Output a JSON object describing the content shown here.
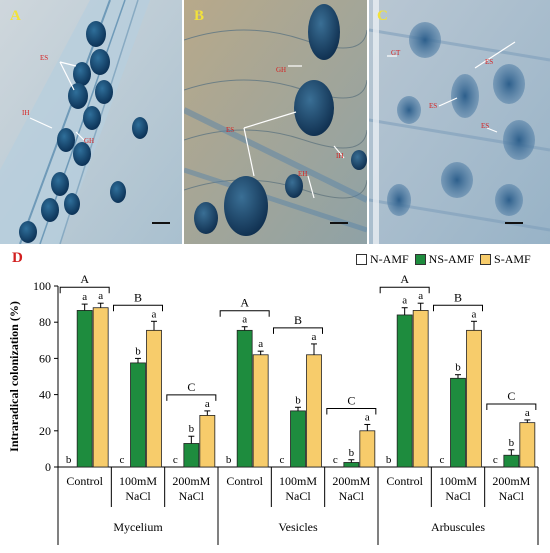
{
  "panels": [
    {
      "letter": "A",
      "labels": [
        "ES",
        "IH",
        "GH"
      ]
    },
    {
      "letter": "B",
      "labels": [
        "GH",
        "ES",
        "IH",
        "EH"
      ]
    },
    {
      "letter": "C",
      "labels": [
        "GT",
        "ES",
        "ES",
        "ES"
      ]
    }
  ],
  "chart_data": {
    "type": "bar",
    "panel_label": "D",
    "ylabel": "Intraradical colonization (%)",
    "ylim": [
      0,
      100
    ],
    "yticks": [
      0,
      20,
      40,
      60,
      80,
      100
    ],
    "groups": [
      {
        "name": "Mycelium",
        "categories": [
          "Control",
          "100mM NaCl",
          "200mM NaCl"
        ],
        "letters": [
          "A",
          "B",
          "C"
        ]
      },
      {
        "name": "Vesicles",
        "categories": [
          "Control",
          "100mM NaCl",
          "200mM NaCl"
        ],
        "letters": [
          "A",
          "B",
          "C"
        ]
      },
      {
        "name": "Arbuscules",
        "categories": [
          "Control",
          "100mM NaCl",
          "200mM NaCl"
        ],
        "letters": [
          "A",
          "B",
          "C"
        ]
      }
    ],
    "series": [
      {
        "name": "N-AMF",
        "color": "#ffffff",
        "values": [
          0,
          0,
          0,
          0,
          0,
          0,
          0,
          0,
          0
        ],
        "errors": [
          0,
          0,
          0,
          0,
          0,
          0,
          0,
          0,
          0
        ],
        "sig": [
          "b",
          "c",
          "c",
          "b",
          "c",
          "c",
          "b",
          "c",
          "c"
        ]
      },
      {
        "name": "NS-AMF",
        "color": "#1e8c3e",
        "values": [
          86.5,
          57.5,
          13,
          75.5,
          31,
          2.5,
          84,
          49,
          6.5
        ],
        "errors": [
          3.5,
          2.5,
          4,
          2,
          2,
          1.5,
          4,
          2,
          3
        ],
        "sig": [
          "a",
          "b",
          "b",
          "a",
          "b",
          "b",
          "a",
          "b",
          "b"
        ]
      },
      {
        "name": "S-AMF",
        "color": "#f7cc6b",
        "values": [
          88,
          75.5,
          28.5,
          62,
          62,
          20,
          86.5,
          75.5,
          24.5
        ],
        "errors": [
          2.5,
          5,
          2.5,
          2,
          6,
          3.5,
          4,
          5,
          1.5
        ],
        "sig": [
          "a",
          "a",
          "a",
          "a",
          "a",
          "a",
          "a",
          "a",
          "a"
        ]
      }
    ],
    "legend_position": "top-right",
    "grid": false
  }
}
